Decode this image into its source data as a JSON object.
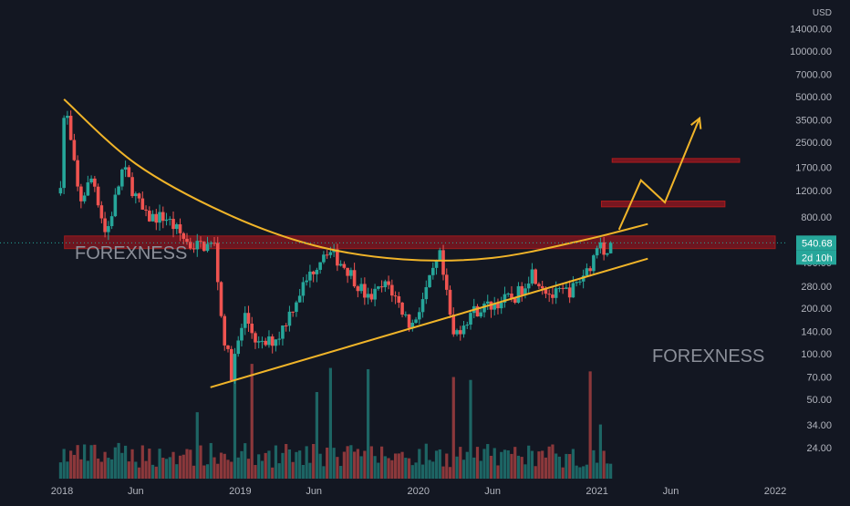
{
  "chart_data": {
    "type": "candlestick",
    "symbol_currency": "USD",
    "y_scale": "log",
    "y_ticks": [
      "14000.00",
      "10000.00",
      "7000.00",
      "5000.00",
      "3500.00",
      "2500.00",
      "1700.00",
      "1200.00",
      "800.00",
      "280.00",
      "200.00",
      "140.00",
      "100.00",
      "70.00",
      "50.00",
      "34.00",
      "24.00"
    ],
    "y_tick_values": [
      14000,
      10000,
      7000,
      5000,
      3500,
      2500,
      1700,
      1200,
      800,
      280,
      200,
      140,
      100,
      70,
      50,
      34,
      24
    ],
    "y_partial_tick": "400.00",
    "x_ticks": [
      "2018",
      "Jun",
      "2019",
      "Jun",
      "2020",
      "Jun",
      "2021",
      "Jun",
      "2022"
    ],
    "x_tick_dates": [
      "2018-01-01",
      "2018-06-01",
      "2019-01-01",
      "2019-06-01",
      "2020-01-01",
      "2020-06-01",
      "2021-01-01",
      "2021-06-01",
      "2022-01-01"
    ],
    "last_price": {
      "value": "540.68",
      "numeric": 540.68,
      "countdown": "2d 10h"
    },
    "watermarks": [
      "FOREXNESS",
      "FOREXNESS"
    ],
    "anchors": [
      {
        "date": "2017-12-29",
        "price": 1400
      },
      {
        "date": "2018-01-07",
        "price": 4700
      },
      {
        "date": "2018-01-18",
        "price": 2600
      },
      {
        "date": "2018-02-06",
        "price": 1000
      },
      {
        "date": "2018-03-05",
        "price": 1500
      },
      {
        "date": "2018-04-01",
        "price": 600
      },
      {
        "date": "2018-05-06",
        "price": 1700
      },
      {
        "date": "2018-06-20",
        "price": 800
      },
      {
        "date": "2018-08-01",
        "price": 800
      },
      {
        "date": "2018-09-20",
        "price": 520
      },
      {
        "date": "2018-11-10",
        "price": 520
      },
      {
        "date": "2018-11-25",
        "price": 150
      },
      {
        "date": "2018-12-14",
        "price": 75
      },
      {
        "date": "2019-01-10",
        "price": 180
      },
      {
        "date": "2019-02-10",
        "price": 110
      },
      {
        "date": "2019-03-20",
        "price": 130
      },
      {
        "date": "2019-05-01",
        "price": 250
      },
      {
        "date": "2019-06-26",
        "price": 500
      },
      {
        "date": "2019-08-10",
        "price": 360
      },
      {
        "date": "2019-09-20",
        "price": 230
      },
      {
        "date": "2019-10-30",
        "price": 290
      },
      {
        "date": "2019-12-18",
        "price": 150
      },
      {
        "date": "2020-02-14",
        "price": 440
      },
      {
        "date": "2020-03-13",
        "price": 130
      },
      {
        "date": "2020-04-20",
        "price": 190
      },
      {
        "date": "2020-06-15",
        "price": 220
      },
      {
        "date": "2020-07-20",
        "price": 240
      },
      {
        "date": "2020-08-20",
        "price": 350
      },
      {
        "date": "2020-09-30",
        "price": 240
      },
      {
        "date": "2020-11-15",
        "price": 270
      },
      {
        "date": "2020-12-20",
        "price": 400
      },
      {
        "date": "2021-01-08",
        "price": 580
      },
      {
        "date": "2021-01-22",
        "price": 420
      },
      {
        "date": "2021-02-01",
        "price": 540.68
      }
    ],
    "drawings": {
      "resistance_zones": [
        {
          "from_date": "2018-01-06",
          "to_date": "2022-01-01",
          "low": 495,
          "high": 600
        },
        {
          "from_date": "2021-01-10",
          "to_date": "2021-09-20",
          "low": 935,
          "high": 1020
        },
        {
          "from_date": "2021-02-01",
          "to_date": "2021-10-20",
          "low": 1840,
          "high": 1950
        }
      ],
      "cup_curve": [
        {
          "date": "2018-01-05",
          "price": 4800
        },
        {
          "date": "2018-06-01",
          "price": 1800
        },
        {
          "date": "2018-12-01",
          "price": 850
        },
        {
          "date": "2019-06-01",
          "price": 520
        },
        {
          "date": "2019-12-01",
          "price": 420
        },
        {
          "date": "2020-06-01",
          "price": 430
        },
        {
          "date": "2020-12-01",
          "price": 560
        },
        {
          "date": "2021-04-15",
          "price": 720
        }
      ],
      "support_line": [
        {
          "date": "2018-11-01",
          "price": 60
        },
        {
          "date": "2021-04-15",
          "price": 425
        }
      ],
      "projection": [
        {
          "date": "2021-02-15",
          "price": 660
        },
        {
          "date": "2021-04-01",
          "price": 1400
        },
        {
          "date": "2021-05-20",
          "price": 1000
        },
        {
          "date": "2021-07-30",
          "price": 3600
        }
      ]
    },
    "colors": {
      "background": "#131722",
      "up": "#26a69a",
      "down": "#ef5350",
      "drawing": "#f0b429",
      "zone_fill": "#7d1620",
      "zone_line": "#b71c1c",
      "axis_text": "#b2b5be",
      "watermark": "#8b8f99",
      "last_price_label": "#26a69a"
    }
  }
}
